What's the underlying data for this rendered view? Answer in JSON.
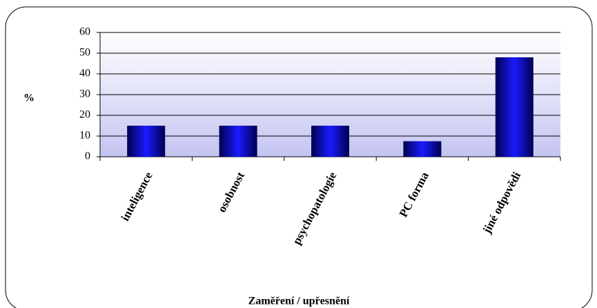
{
  "chart_data": {
    "type": "bar",
    "categories": [
      "inteligence",
      "osobnost",
      "psychopatologie",
      "PC forma",
      "jiné odpovědi"
    ],
    "values": [
      15,
      15,
      15,
      7.5,
      48
    ],
    "color": "#1010e0",
    "ylim": [
      0,
      60
    ],
    "yticks": [
      0,
      10,
      20,
      30,
      40,
      50,
      60
    ],
    "grid": true,
    "ylabel": "%",
    "xlabel": "Zaměření / upřesnění"
  }
}
